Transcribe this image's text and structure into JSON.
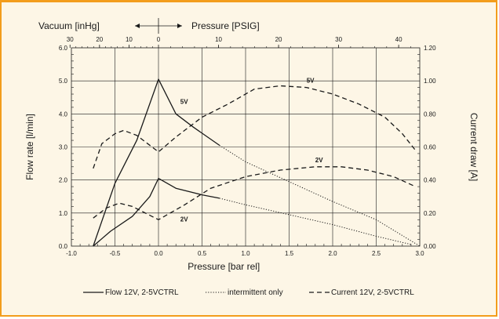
{
  "chart_data": {
    "type": "line",
    "xlabel": "Pressure [bar rel]",
    "ylabel": "Flow rate [l/min]",
    "y2label": "Current draw [A]",
    "top_axis": {
      "left_label": "Vacuum [inHg]",
      "right_label": "Pressure [PSIG]",
      "ticks": [
        "30",
        "20",
        "10",
        "0",
        "10",
        "20",
        "30",
        "40"
      ]
    },
    "xlim": [
      -1.0,
      3.0
    ],
    "ylim": [
      0,
      6.0
    ],
    "y2lim": [
      0,
      1.2
    ],
    "x_ticks": [
      "-1.0",
      "-0.5",
      "0.0",
      "0.5",
      "1.0",
      "1.5",
      "2.0",
      "2.5",
      "3.0"
    ],
    "y_ticks": [
      "0.0",
      "1.0",
      "2.0",
      "3.0",
      "4.0",
      "5.0",
      "6.0"
    ],
    "y2_ticks": [
      "0.00",
      "0.20",
      "0.40",
      "0.60",
      "0.80",
      "1.00",
      "1.20"
    ],
    "grid": true,
    "series": [
      {
        "name": "Flow 12V, 2-5VCTRL",
        "label": "5V",
        "axis": "left",
        "style": "solid",
        "points": [
          [
            -0.75,
            0.0
          ],
          [
            -0.5,
            1.9
          ],
          [
            -0.25,
            3.2
          ],
          [
            0.0,
            5.05
          ],
          [
            0.2,
            4.0
          ],
          [
            0.4,
            3.6
          ],
          [
            0.7,
            3.05
          ]
        ]
      },
      {
        "name": "intermittent only",
        "axis": "left",
        "style": "dotted",
        "points": [
          [
            0.7,
            3.05
          ],
          [
            1.0,
            2.55
          ],
          [
            1.5,
            1.95
          ],
          [
            2.0,
            1.35
          ],
          [
            2.5,
            0.8
          ],
          [
            3.0,
            0.0
          ]
        ]
      },
      {
        "name": "Current 12V, 2-5VCTRL",
        "label": "5V",
        "axis": "right",
        "style": "dashed",
        "points": [
          [
            -0.75,
            0.47
          ],
          [
            -0.65,
            0.62
          ],
          [
            -0.5,
            0.68
          ],
          [
            -0.4,
            0.7
          ],
          [
            -0.25,
            0.67
          ],
          [
            0.0,
            0.57
          ],
          [
            0.2,
            0.66
          ],
          [
            0.5,
            0.78
          ],
          [
            0.8,
            0.86
          ],
          [
            1.1,
            0.95
          ],
          [
            1.4,
            0.97
          ],
          [
            1.7,
            0.96
          ],
          [
            2.0,
            0.92
          ],
          [
            2.3,
            0.86
          ],
          [
            2.6,
            0.78
          ],
          [
            2.8,
            0.68
          ],
          [
            2.95,
            0.58
          ]
        ]
      },
      {
        "name": "Flow 12V, 2-5VCTRL",
        "label": "2V",
        "axis": "left",
        "style": "solid",
        "points": [
          [
            -0.75,
            0.0
          ],
          [
            -0.55,
            0.45
          ],
          [
            -0.3,
            0.9
          ],
          [
            -0.1,
            1.5
          ],
          [
            0.0,
            2.05
          ],
          [
            0.2,
            1.75
          ],
          [
            0.5,
            1.55
          ],
          [
            0.7,
            1.45
          ]
        ]
      },
      {
        "name": "intermittent only",
        "axis": "left",
        "style": "dotted",
        "points": [
          [
            0.7,
            1.45
          ],
          [
            1.0,
            1.25
          ],
          [
            1.5,
            0.95
          ],
          [
            2.0,
            0.65
          ],
          [
            2.5,
            0.3
          ],
          [
            2.9,
            0.05
          ]
        ]
      },
      {
        "name": "Current 12V, 2-5VCTRL",
        "label": "2V",
        "axis": "right",
        "style": "dashed",
        "points": [
          [
            -0.75,
            0.17
          ],
          [
            -0.6,
            0.23
          ],
          [
            -0.45,
            0.26
          ],
          [
            -0.3,
            0.24
          ],
          [
            0.0,
            0.16
          ],
          [
            0.3,
            0.25
          ],
          [
            0.6,
            0.35
          ],
          [
            1.0,
            0.42
          ],
          [
            1.4,
            0.46
          ],
          [
            1.8,
            0.48
          ],
          [
            2.1,
            0.48
          ],
          [
            2.4,
            0.46
          ],
          [
            2.7,
            0.42
          ],
          [
            2.95,
            0.36
          ]
        ]
      }
    ],
    "legend": {
      "position": "bottom",
      "entries": [
        {
          "label": "Flow 12V, 2-5VCTRL",
          "style": "solid"
        },
        {
          "label": "intermittent only",
          "style": "dotted"
        },
        {
          "label": "Current 12V, 2-5VCTRL",
          "style": "dashed"
        }
      ]
    }
  }
}
